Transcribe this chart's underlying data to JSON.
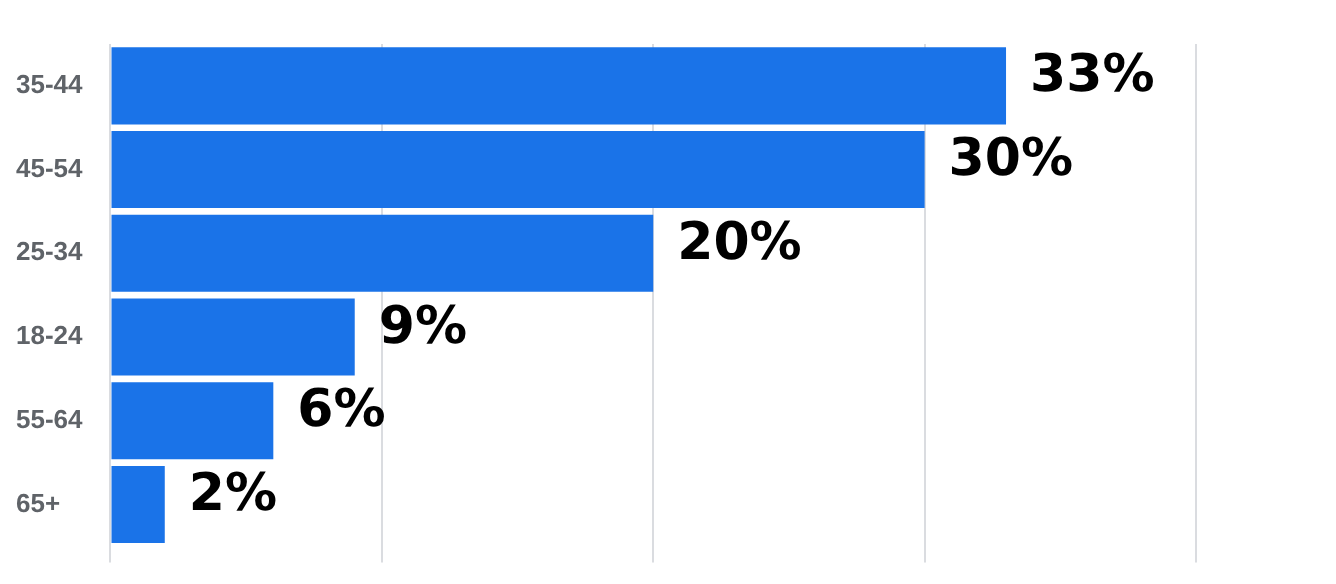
{
  "chart_data": {
    "type": "bar",
    "orientation": "horizontal",
    "categories": [
      "35-44",
      "45-54",
      "25-34",
      "18-24",
      "55-64",
      "65+"
    ],
    "values": [
      33,
      30,
      20,
      9,
      6,
      2
    ],
    "value_labels": [
      "33%",
      "30%",
      "20%",
      "9%",
      "6%",
      "2%"
    ],
    "color": "#1a73e8",
    "xticks": [
      {
        "value": 0,
        "label": null
      },
      {
        "value": 10,
        "label": null
      },
      {
        "value": 20,
        "label": null
      },
      {
        "value": 30,
        "label": null
      },
      {
        "value": 40,
        "label": null
      }
    ],
    "tick_labels": "y",
    "grid": "x",
    "legend": false
  }
}
